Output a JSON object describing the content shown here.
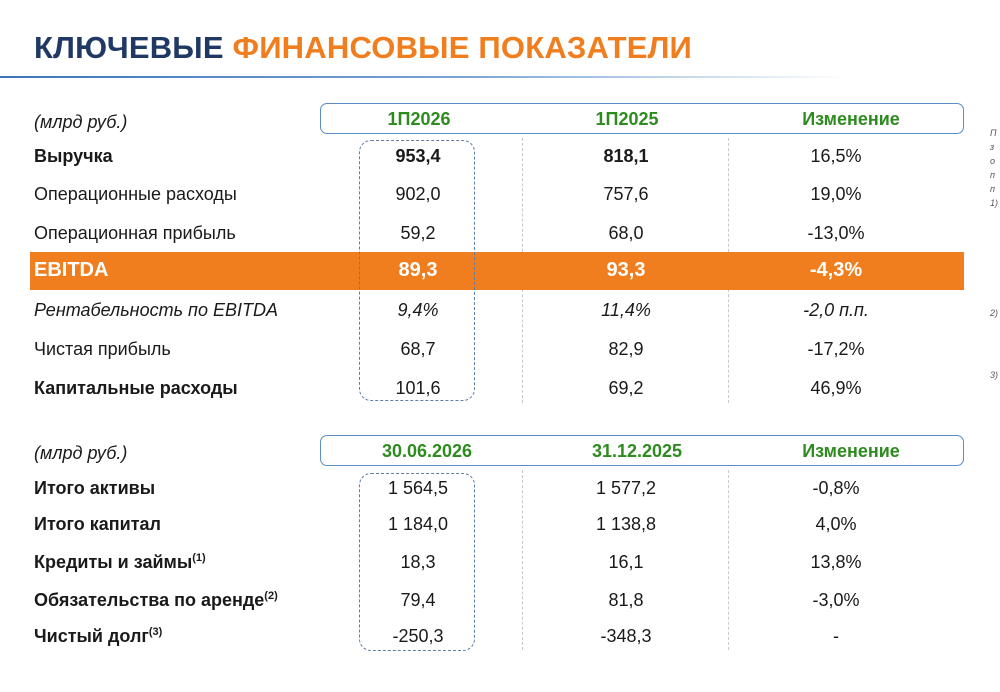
{
  "title": {
    "part1": "КЛЮЧЕВЫЕ",
    "part2": "ФИНАНСОВЫЕ ПОКАЗАТЕЛИ"
  },
  "colors": {
    "navy": "#1f3864",
    "orange": "#f07e1e",
    "green": "#2e8b1f",
    "box_border": "#5b8ec4"
  },
  "table1": {
    "unit": "(млрд руб.)",
    "headers": [
      "1П2026",
      "1П2025",
      "Изменение"
    ],
    "rows": [
      {
        "label": "Выручка",
        "v1": "953,4",
        "v2": "818,1",
        "v3": "16,5%"
      },
      {
        "label": "Операционные расходы",
        "v1": "902,0",
        "v2": "757,6",
        "v3": "19,0%"
      },
      {
        "label": "Операционная прибыль",
        "v1": "59,2",
        "v2": "68,0",
        "v3": "-13,0%"
      },
      {
        "label": "EBITDA",
        "v1": "89,3",
        "v2": "93,3",
        "v3": "-4,3%"
      },
      {
        "label": "Рентабельность по EBITDA",
        "v1": "9,4%",
        "v2": "11,4%",
        "v3": "-2,0 п.п."
      },
      {
        "label": "Чистая прибыль",
        "v1": "68,7",
        "v2": "82,9",
        "v3": "-17,2%"
      },
      {
        "label": "Капитальные расходы",
        "v1": "101,6",
        "v2": "69,2",
        "v3": "46,9%"
      }
    ]
  },
  "table2": {
    "unit": "(млрд руб.)",
    "headers": [
      "30.06.2026",
      "31.12.2025",
      "Изменение"
    ],
    "rows": [
      {
        "label": "Итого активы",
        "sup": "",
        "v1": "1 564,5",
        "v2": "1 577,2",
        "v3": "-0,8%"
      },
      {
        "label": "Итого капитал",
        "sup": "",
        "v1": "1 184,0",
        "v2": "1 138,8",
        "v3": "4,0%"
      },
      {
        "label": "Кредиты и займы",
        "sup": "(1)",
        "v1": "18,3",
        "v2": "16,1",
        "v3": "13,8%"
      },
      {
        "label": "Обязательства по аренде",
        "sup": "(2)",
        "v1": "79,4",
        "v2": "81,8",
        "v3": "-3,0%"
      },
      {
        "label": "Чистый долг",
        "sup": "(3)",
        "v1": "-250,3",
        "v2": "-348,3",
        "v3": "-"
      }
    ]
  },
  "side_fragments": [
    "П",
    "з",
    "о",
    "п",
    "п",
    "1)",
    "2)",
    "3)"
  ]
}
